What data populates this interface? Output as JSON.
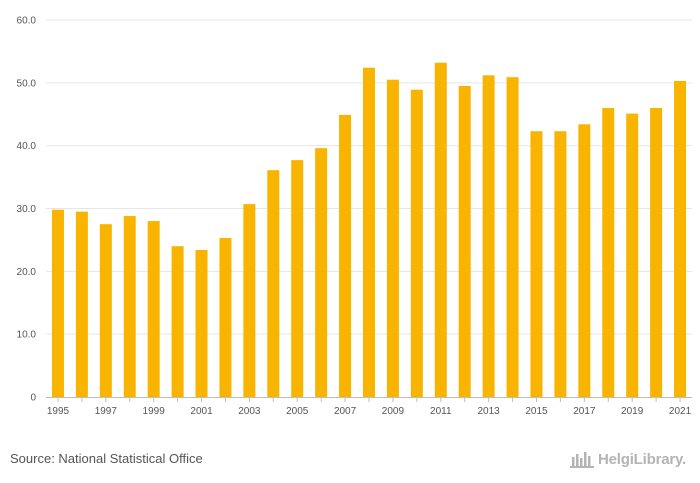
{
  "chart_data": {
    "type": "bar",
    "title": "",
    "xlabel": "",
    "ylabel": "",
    "categories": [
      "1995",
      "1996",
      "1997",
      "1998",
      "1999",
      "2000",
      "2001",
      "2002",
      "2003",
      "2004",
      "2005",
      "2006",
      "2007",
      "2008",
      "2009",
      "2010",
      "2011",
      "2012",
      "2013",
      "2014",
      "2015",
      "2016",
      "2017",
      "2018",
      "2019",
      "2020",
      "2021"
    ],
    "x_tick_labels": [
      "1995",
      "1997",
      "1999",
      "2001",
      "2003",
      "2005",
      "2007",
      "2009",
      "2011",
      "2013",
      "2015",
      "2017",
      "2019",
      "2021"
    ],
    "values": [
      29.8,
      29.5,
      27.5,
      28.8,
      28.0,
      24.0,
      23.4,
      25.3,
      30.7,
      36.1,
      37.7,
      39.6,
      44.9,
      52.4,
      50.5,
      48.9,
      53.2,
      49.5,
      51.2,
      50.9,
      42.3,
      42.3,
      43.4,
      46.0,
      45.1,
      46.0,
      50.3
    ],
    "ylim": [
      0,
      60
    ],
    "y_ticks": [
      "0",
      "10.0",
      "20.0",
      "30.0",
      "40.0",
      "50.0",
      "60.0"
    ],
    "grid": true,
    "bar_color": "#f9b400"
  },
  "footer": {
    "source": "Source: National Statistical Office",
    "brand": "HelgiLibrary."
  }
}
